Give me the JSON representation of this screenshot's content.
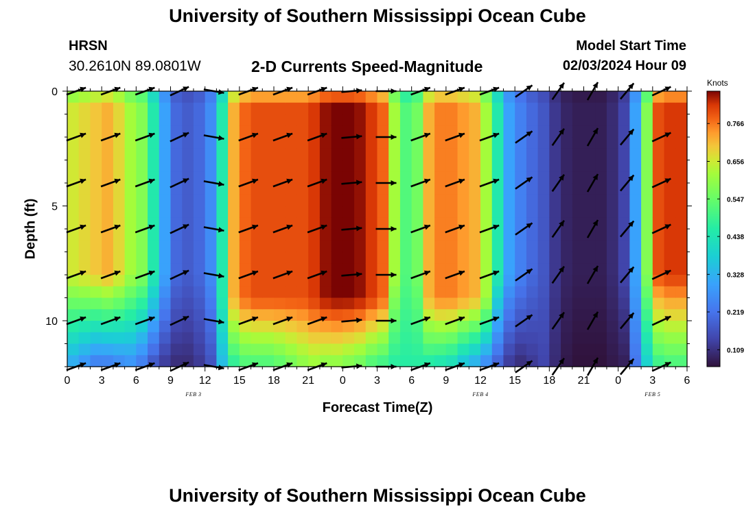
{
  "header": {
    "title": "University of Southern Mississippi Ocean Cube",
    "station": "HRSN",
    "coordinates": "30.2610N  89.0801W",
    "subtitle": "2-D Currents Speed-Magnitude",
    "model_start_label": "Model Start Time",
    "model_start_value": "02/03/2024 Hour 09"
  },
  "footer": {
    "title": "University of Southern Mississippi Ocean Cube"
  },
  "chart_data": {
    "type": "heatmap",
    "title": "2-D Currents Speed-Magnitude",
    "xlabel": "Forecast Time(Z)",
    "ylabel": "Depth (ft)",
    "x_ticks": [
      "0",
      "3",
      "6",
      "9",
      "12",
      "15",
      "18",
      "21",
      "0",
      "3",
      "6",
      "9",
      "12",
      "15",
      "18",
      "21",
      "0",
      "3",
      "6"
    ],
    "x_range_hours": [
      0,
      54
    ],
    "y_ticks": [
      "0",
      "5",
      "10"
    ],
    "y_range_ft": [
      0,
      12
    ],
    "y_inverted": true,
    "date_labels": [
      {
        "text": "FEB 3",
        "hour": 11
      },
      {
        "text": "FEB 4",
        "hour": 36
      },
      {
        "text": "FEB 5",
        "hour": 51
      }
    ],
    "colorbar": {
      "unit": "Knots",
      "ticks": [
        "0.109",
        "0.219",
        "0.328",
        "0.438",
        "0.547",
        "0.656",
        "0.766"
      ],
      "range": [
        0.06,
        0.86
      ]
    },
    "depth_profile_ft": [
      0,
      1,
      2,
      3,
      4,
      5,
      6,
      7,
      8,
      9,
      10,
      11,
      12
    ],
    "speed_profile_by_hour": {
      "hours": [
        0,
        1,
        2,
        3,
        4,
        5,
        6,
        7,
        8,
        9,
        10,
        11,
        12,
        13,
        14,
        15,
        16,
        17,
        18,
        19,
        20,
        21,
        22,
        23,
        24,
        25,
        26,
        27,
        28,
        29,
        30,
        31,
        32,
        33,
        34,
        35,
        36,
        37,
        38,
        39,
        40,
        41,
        42,
        43,
        44,
        45,
        46,
        47,
        48,
        49,
        50,
        51,
        52,
        53,
        54
      ],
      "surface": [
        0.66,
        0.68,
        0.7,
        0.72,
        0.68,
        0.62,
        0.58,
        0.45,
        0.3,
        0.2,
        0.18,
        0.2,
        0.26,
        0.45,
        0.72,
        0.78,
        0.8,
        0.8,
        0.8,
        0.8,
        0.8,
        0.82,
        0.85,
        0.86,
        0.86,
        0.85,
        0.82,
        0.78,
        0.62,
        0.52,
        0.56,
        0.72,
        0.76,
        0.76,
        0.74,
        0.72,
        0.62,
        0.45,
        0.3,
        0.24,
        0.2,
        0.17,
        0.12,
        0.09,
        0.08,
        0.08,
        0.08,
        0.1,
        0.14,
        0.3,
        0.58,
        0.8,
        0.82,
        0.82,
        0.8
      ],
      "bottom": [
        0.3,
        0.26,
        0.22,
        0.22,
        0.24,
        0.26,
        0.22,
        0.16,
        0.12,
        0.1,
        0.1,
        0.12,
        0.16,
        0.34,
        0.46,
        0.5,
        0.5,
        0.5,
        0.52,
        0.55,
        0.58,
        0.6,
        0.58,
        0.58,
        0.56,
        0.54,
        0.5,
        0.48,
        0.46,
        0.46,
        0.46,
        0.44,
        0.42,
        0.4,
        0.34,
        0.3,
        0.24,
        0.18,
        0.12,
        0.1,
        0.12,
        0.14,
        0.1,
        0.07,
        0.06,
        0.06,
        0.06,
        0.07,
        0.08,
        0.22,
        0.38,
        0.48,
        0.5,
        0.5,
        0.5
      ],
      "transition_depth_ft": [
        8,
        8,
        8,
        8,
        8,
        8,
        8,
        8,
        8,
        8,
        8,
        8,
        8,
        9,
        9,
        9,
        9,
        9,
        9,
        9,
        9,
        9,
        9,
        9,
        9,
        9,
        9,
        9,
        8,
        8,
        8,
        9,
        9,
        9,
        9,
        9,
        9,
        8,
        8,
        8,
        8,
        8,
        8,
        8,
        8,
        8,
        8,
        8,
        8,
        8,
        8,
        8,
        8,
        8,
        8
      ]
    },
    "vectors": {
      "hours": [
        0,
        3,
        6,
        9,
        12,
        15,
        18,
        21,
        24,
        27,
        30,
        33,
        36,
        39,
        42,
        45,
        48,
        51
      ],
      "depths_ft": [
        0,
        2,
        4,
        6,
        8,
        10,
        12
      ],
      "direction_deg_math": [
        20,
        20,
        20,
        25,
        -10,
        20,
        20,
        20,
        5,
        0,
        20,
        20,
        20,
        35,
        55,
        60,
        50,
        25
      ]
    }
  }
}
